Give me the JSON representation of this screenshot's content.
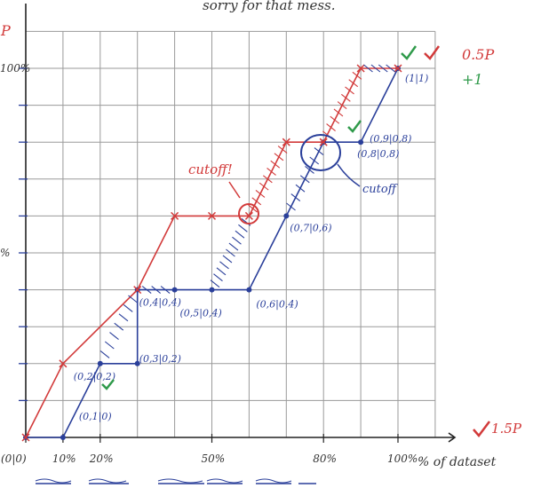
{
  "chart_data": {
    "type": "line",
    "title": "sorry for that mess.",
    "xlabel": "% of dataset",
    "ylabel": "",
    "xlim": [
      0,
      110
    ],
    "ylim": [
      0,
      110
    ],
    "x_tick_labels": [
      {
        "x": 0,
        "label": "(0|0)"
      },
      {
        "x": 10,
        "label": "10%"
      },
      {
        "x": 20,
        "label": "20%"
      },
      {
        "x": 50,
        "label": "50%"
      },
      {
        "x": 80,
        "label": "80%"
      },
      {
        "x": 100,
        "label": "100%"
      }
    ],
    "y_tick_labels": [
      {
        "y": 100,
        "label": "100%"
      },
      {
        "y": 50,
        "label": "%"
      }
    ],
    "series": [
      {
        "name": "blue",
        "color": "#2a3f9a",
        "points": [
          [
            0,
            0
          ],
          [
            10,
            0
          ],
          [
            20,
            20
          ],
          [
            30,
            20
          ],
          [
            30,
            40
          ],
          [
            40,
            40
          ],
          [
            50,
            40
          ],
          [
            60,
            40
          ],
          [
            70,
            60
          ],
          [
            80,
            80
          ],
          [
            90,
            80
          ],
          [
            100,
            100
          ]
        ]
      },
      {
        "name": "red",
        "color": "#d23a3a",
        "points": [
          [
            0,
            0
          ],
          [
            10,
            20
          ],
          [
            30,
            40
          ],
          [
            40,
            60
          ],
          [
            50,
            60
          ],
          [
            60,
            60
          ],
          [
            70,
            80
          ],
          [
            80,
            80
          ],
          [
            90,
            100
          ],
          [
            100,
            100
          ]
        ]
      }
    ],
    "point_labels": [
      {
        "text": "(0,1|0)",
        "x": 10,
        "y": 0
      },
      {
        "text": "(0,2|0,2)",
        "x": 20,
        "y": 20
      },
      {
        "text": "(0,3|0,2)",
        "x": 30,
        "y": 20
      },
      {
        "text": "(0,4|0,4)",
        "x": 40,
        "y": 40
      },
      {
        "text": "(0,5|0,4)",
        "x": 50,
        "y": 40
      },
      {
        "text": "(0,6|0,4)",
        "x": 60,
        "y": 40
      },
      {
        "text": "(0,7|0,6)",
        "x": 70,
        "y": 60
      },
      {
        "text": "(0,8|0,8)",
        "x": 90,
        "y": 80
      },
      {
        "text": "(0,9|0,8)",
        "x": 90,
        "y": 80
      },
      {
        "text": "(1|1)",
        "x": 100,
        "y": 100
      }
    ],
    "annotations": {
      "cutoff_red": "cutoff!",
      "cutoff_blue": "cutoff",
      "score_top": "0.5P",
      "score_plus": "+1",
      "score_right": "1.5P",
      "left_top_mark": "P"
    }
  }
}
